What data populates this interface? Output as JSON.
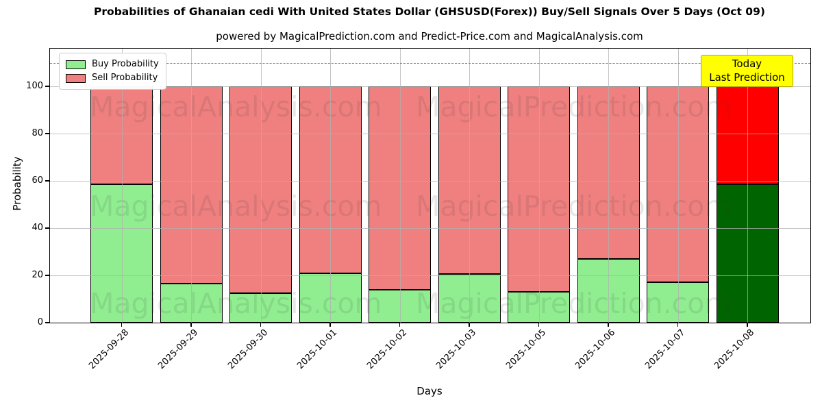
{
  "subtitle": "powered by MagicalPrediction.com and Predict-Price.com and MagicalAnalysis.com",
  "watermarks": {
    "left": "MagicalAnalysis.com",
    "right": "MagicalPrediction.com"
  },
  "today_label": {
    "line1": "Today",
    "line2": "Last Prediction",
    "bg_color": "#ffff00",
    "border_color": "#b5a300"
  },
  "chart_data": {
    "type": "bar",
    "stacked": true,
    "title": "Probabilities of Ghanaian cedi With United States Dollar (GHSUSD(Forex)) Buy/Sell Signals Over 5 Days (Oct 09)",
    "xlabel": "Days",
    "ylabel": "Probability",
    "categories": [
      "2025-09-28",
      "2025-09-29",
      "2025-09-30",
      "2025-10-01",
      "2025-10-02",
      "2025-10-03",
      "2025-10-05",
      "2025-10-06",
      "2025-10-07",
      "2025-10-08"
    ],
    "series": [
      {
        "name": "Buy Probability",
        "color": "#90ee90",
        "last_bar_color": "#006400",
        "values": [
          58.5,
          16.5,
          12.5,
          21,
          14,
          20.5,
          13,
          27,
          17,
          58.5
        ]
      },
      {
        "name": "Sell Probability",
        "color": "#f08080",
        "last_bar_color": "#ff0000",
        "values": [
          41.5,
          83.5,
          87.5,
          79,
          86,
          79.5,
          87,
          73,
          83,
          41.5
        ]
      }
    ],
    "ylim": [
      0,
      116
    ],
    "yticks": [
      0,
      20,
      40,
      60,
      80,
      100
    ],
    "dashed_hline": 110,
    "grid": true,
    "legend_position": "upper left",
    "bar_edge_color": "#000000"
  }
}
